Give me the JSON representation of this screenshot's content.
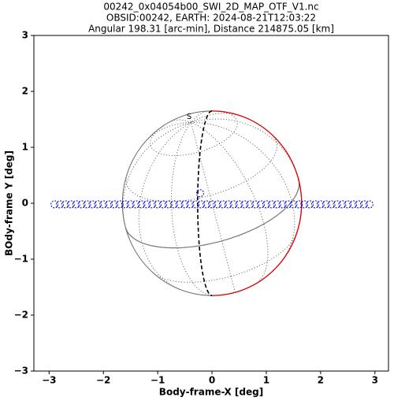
{
  "chart_data": {
    "type": "scatter",
    "title": "00242_0x04054b00_SWI_2D_MAP_OTF_V1.nc",
    "subtitle": "OBSID:00242, EARTH: 2024-08-21T12:03:22",
    "subtitle2": "Angular 198.31 [arc-min], Distance 214875.05 [km]",
    "x_label": "Body-frame-X [deg]",
    "y_label": "BOdy-frame Y [deg]",
    "xlim": [
      -3.28,
      3.25
    ],
    "ylim": [
      -3,
      3
    ],
    "xticks": [
      {
        "value": -3,
        "label": "−3"
      },
      {
        "value": -2,
        "label": "−2"
      },
      {
        "value": -1,
        "label": "−1"
      },
      0,
      1,
      2,
      3
    ],
    "yticks": [
      {
        "value": -3,
        "label": "−3"
      },
      {
        "value": -2,
        "label": "−2"
      },
      {
        "value": -1,
        "label": "−1"
      },
      0,
      1,
      2,
      3
    ],
    "disk": {
      "center": [
        0,
        0
      ],
      "radius": 1.65
    },
    "annotations": [
      {
        "text": "S",
        "x": -0.42,
        "y": 1.55
      }
    ],
    "series": [
      {
        "color": "#0000cc",
        "x": [
          -2.9,
          -2.8,
          -2.7,
          -2.6,
          -2.5,
          -2.4,
          -2.3,
          -2.2,
          -2.1,
          -2.0,
          -1.9,
          -1.8,
          -1.7,
          -1.6,
          -1.5,
          -1.4,
          -1.3,
          -1.2,
          -1.1,
          -1.0,
          -0.9,
          -0.8,
          -0.7,
          -0.6,
          -0.5,
          -0.4,
          -0.3,
          -0.2,
          -0.1,
          0.0,
          0.1,
          0.2,
          0.3,
          0.4,
          0.5,
          0.6,
          0.7,
          0.8,
          0.9,
          1.0,
          1.1,
          1.2,
          1.3,
          1.4,
          1.5,
          1.6,
          1.7,
          1.8,
          1.9,
          2.0,
          2.1,
          2.2,
          2.3,
          2.4,
          2.5,
          2.6,
          2.7,
          2.8,
          2.9
        ],
        "values": [
          -0.02,
          -0.02,
          -0.02,
          -0.02,
          -0.02,
          -0.02,
          -0.02,
          -0.02,
          -0.02,
          -0.02,
          -0.02,
          -0.02,
          -0.02,
          -0.02,
          -0.02,
          -0.02,
          -0.02,
          -0.02,
          -0.02,
          -0.02,
          -0.02,
          -0.02,
          -0.02,
          -0.02,
          -0.02,
          -0.02,
          -0.02,
          -0.02,
          -0.02,
          -0.02,
          -0.02,
          -0.02,
          -0.02,
          -0.02,
          -0.02,
          -0.02,
          -0.02,
          -0.02,
          -0.02,
          -0.02,
          -0.02,
          -0.02,
          -0.02,
          -0.02,
          -0.02,
          -0.02,
          -0.02,
          -0.02,
          -0.02,
          -0.02,
          -0.02,
          -0.02,
          -0.02,
          -0.02,
          -0.02,
          -0.02,
          -0.02,
          -0.02,
          -0.02
        ]
      },
      {
        "color": "#0000cc",
        "x": [
          -0.22
        ],
        "values": [
          0.18
        ]
      }
    ]
  }
}
